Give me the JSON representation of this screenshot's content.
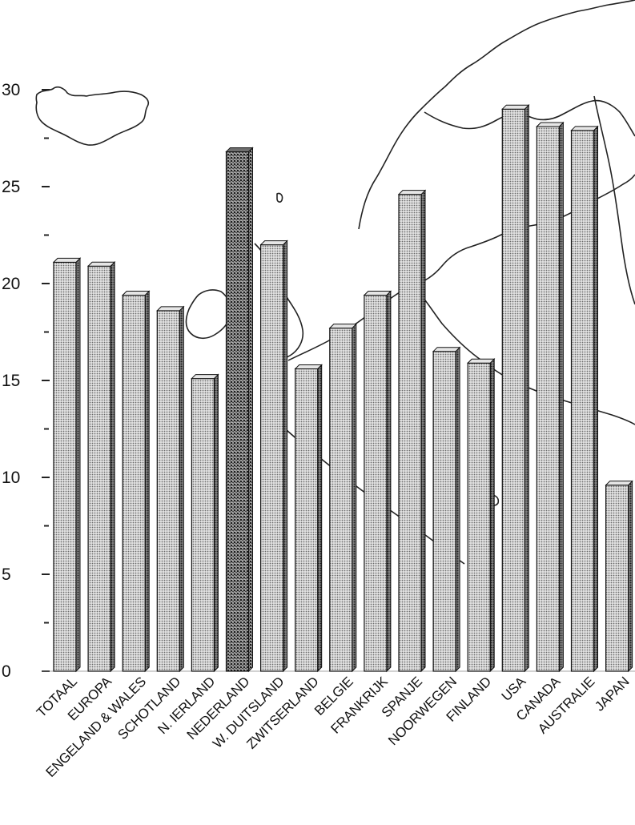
{
  "chart_data": {
    "type": "bar",
    "title": "",
    "xlabel": "",
    "ylabel": "",
    "ylim": [
      0,
      30
    ],
    "yticks": [
      0,
      5,
      10,
      15,
      20,
      25,
      30
    ],
    "grid": false,
    "legend": "none",
    "categories": [
      "TOTAAL",
      "EUROPA",
      "ENGELAND & WALES",
      "SCHOTLAND",
      "N. IERLAND",
      "NEDERLAND",
      "W. DUITSLAND",
      "ZWITSERLAND",
      "BELGIE",
      "FRANKRIJK",
      "SPANJE",
      "NOORWEGEN",
      "FINLAND",
      "USA",
      "CANADA",
      "AUSTRALIE",
      "JAPAN"
    ],
    "values": [
      21.1,
      20.9,
      19.4,
      18.6,
      15.1,
      26.8,
      22.0,
      15.6,
      17.7,
      19.4,
      24.6,
      16.5,
      15.9,
      29.0,
      28.1,
      27.9,
      9.6
    ],
    "highlight_index": 5,
    "colors": {
      "bar_face": "#bdbdbd",
      "bar_side": "#5a5a5a",
      "bar_top": "#e6e6e6",
      "highlight_face": "#6e6e6e",
      "highlight_side": "#1e1e1e",
      "axis": "#222222"
    }
  }
}
